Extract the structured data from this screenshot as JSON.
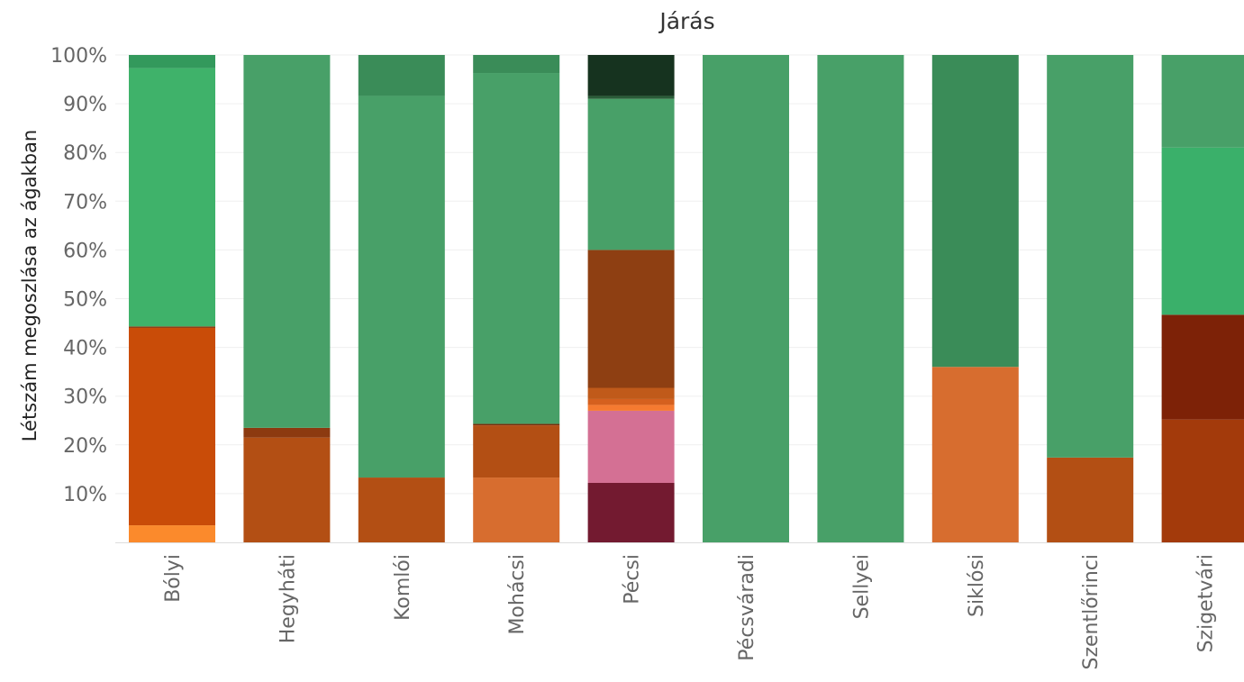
{
  "chart_data": {
    "type": "bar",
    "stacked": "percent",
    "title": "Járás",
    "xlabel": "",
    "ylabel": "Létszám megoszlása az ágakban",
    "ylim": [
      0,
      100
    ],
    "yticks": [
      10,
      20,
      30,
      40,
      50,
      60,
      70,
      80,
      90,
      100
    ],
    "ytick_labels": [
      "10%",
      "20%",
      "30%",
      "40%",
      "50%",
      "60%",
      "70%",
      "80%",
      "90%",
      "100%"
    ],
    "grid": true,
    "legend": "none",
    "categories": [
      "Bólyi",
      "Hegyháti",
      "Komlói",
      "Mohácsi",
      "Pécsi",
      "Pécsváradi",
      "Sellyei",
      "Siklósi",
      "Szentlőrinci",
      "Szigetvári"
    ],
    "stacks": [
      [
        {
          "value": 3.5,
          "color": "#fb8a2c"
        },
        {
          "value": 40.5,
          "color": "#c94c08"
        },
        {
          "value": 0.3,
          "color": "#8c3a10"
        },
        {
          "value": 53.0,
          "color": "#3fb26a"
        },
        {
          "value": 2.7,
          "color": "#33995c"
        }
      ],
      [
        {
          "value": 21.5,
          "color": "#b34f14"
        },
        {
          "value": 2.0,
          "color": "#8c3a10"
        },
        {
          "value": 76.5,
          "color": "#48a068"
        }
      ],
      [
        {
          "value": 13.3,
          "color": "#b34f14"
        },
        {
          "value": 78.3,
          "color": "#48a068"
        },
        {
          "value": 8.4,
          "color": "#3a8c58"
        }
      ],
      [
        {
          "value": 13.3,
          "color": "#d76d2f"
        },
        {
          "value": 10.7,
          "color": "#b34f14"
        },
        {
          "value": 0.3,
          "color": "#7a2e0a"
        },
        {
          "value": 72.0,
          "color": "#48a068"
        },
        {
          "value": 3.7,
          "color": "#3a8c58"
        }
      ],
      [
        {
          "value": 12.2,
          "color": "#731a30"
        },
        {
          "value": 14.8,
          "color": "#d47094"
        },
        {
          "value": 1.2,
          "color": "#f57a30"
        },
        {
          "value": 1.2,
          "color": "#d5601e"
        },
        {
          "value": 2.3,
          "color": "#c05a1a"
        },
        {
          "value": 28.3,
          "color": "#8e3f12"
        },
        {
          "value": 31.0,
          "color": "#48a068"
        },
        {
          "value": 0.6,
          "color": "#2a5c38"
        },
        {
          "value": 8.4,
          "color": "#16331f"
        }
      ],
      [
        {
          "value": 100,
          "color": "#48a068"
        }
      ],
      [
        {
          "value": 100,
          "color": "#48a068"
        }
      ],
      [
        {
          "value": 36.0,
          "color": "#d76d2f"
        },
        {
          "value": 64.0,
          "color": "#3a8c58"
        }
      ],
      [
        {
          "value": 17.4,
          "color": "#b34f14"
        },
        {
          "value": 82.6,
          "color": "#48a068"
        }
      ],
      [
        {
          "value": 25.2,
          "color": "#a33a0b"
        },
        {
          "value": 21.5,
          "color": "#7d2207"
        },
        {
          "value": 34.3,
          "color": "#3ab06a"
        },
        {
          "value": 19.0,
          "color": "#48a068"
        }
      ]
    ]
  }
}
